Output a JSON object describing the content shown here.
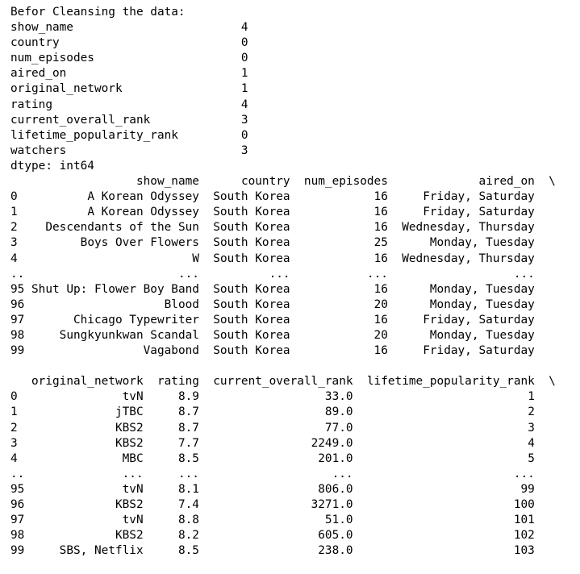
{
  "output": {
    "header": "Befor Cleansing the data:",
    "null_counts": [
      {
        "name": "show_name",
        "count": "4"
      },
      {
        "name": "country",
        "count": "0"
      },
      {
        "name": "num_episodes",
        "count": "0"
      },
      {
        "name": "aired_on",
        "count": "1"
      },
      {
        "name": "original_network",
        "count": "1"
      },
      {
        "name": "rating",
        "count": "4"
      },
      {
        "name": "current_overall_rank",
        "count": "3"
      },
      {
        "name": "lifetime_popularity_rank",
        "count": "0"
      },
      {
        "name": "watchers",
        "count": "3"
      }
    ],
    "dtype_line": "dtype: int64",
    "table1": {
      "columns": [
        "show_name",
        "country",
        "num_episodes",
        "aired_on"
      ],
      "continuation": "\\",
      "rows": [
        {
          "index": "0",
          "cells": [
            "A Korean Odyssey",
            "South Korea",
            "16",
            "Friday, Saturday"
          ]
        },
        {
          "index": "1",
          "cells": [
            "A Korean Odyssey",
            "South Korea",
            "16",
            "Friday, Saturday"
          ]
        },
        {
          "index": "2",
          "cells": [
            "Descendants of the Sun",
            "South Korea",
            "16",
            "Wednesday, Thursday"
          ]
        },
        {
          "index": "3",
          "cells": [
            "Boys Over Flowers",
            "South Korea",
            "25",
            "Monday, Tuesday"
          ]
        },
        {
          "index": "4",
          "cells": [
            "W",
            "South Korea",
            "16",
            "Wednesday, Thursday"
          ]
        },
        {
          "index": "..",
          "cells": [
            "...",
            "...",
            "...",
            "..."
          ]
        },
        {
          "index": "95",
          "cells": [
            "Shut Up: Flower Boy Band",
            "South Korea",
            "16",
            "Monday, Tuesday"
          ]
        },
        {
          "index": "96",
          "cells": [
            "Blood",
            "South Korea",
            "20",
            "Monday, Tuesday"
          ]
        },
        {
          "index": "97",
          "cells": [
            "Chicago Typewriter",
            "South Korea",
            "16",
            "Friday, Saturday"
          ]
        },
        {
          "index": "98",
          "cells": [
            "Sungkyunkwan Scandal",
            "South Korea",
            "20",
            "Monday, Tuesday"
          ]
        },
        {
          "index": "99",
          "cells": [
            "Vagabond",
            "South Korea",
            "16",
            "Friday, Saturday"
          ]
        }
      ]
    },
    "table2": {
      "columns": [
        "original_network",
        "rating",
        "current_overall_rank",
        "lifetime_popularity_rank"
      ],
      "continuation": "\\",
      "rows": [
        {
          "index": "0",
          "cells": [
            "tvN",
            "8.9",
            "33.0",
            "1"
          ]
        },
        {
          "index": "1",
          "cells": [
            "jTBC",
            "8.7",
            "89.0",
            "2"
          ]
        },
        {
          "index": "2",
          "cells": [
            "KBS2",
            "8.7",
            "77.0",
            "3"
          ]
        },
        {
          "index": "3",
          "cells": [
            "KBS2",
            "7.7",
            "2249.0",
            "4"
          ]
        },
        {
          "index": "4",
          "cells": [
            "MBC",
            "8.5",
            "201.0",
            "5"
          ]
        },
        {
          "index": "..",
          "cells": [
            "...",
            "...",
            "...",
            "..."
          ]
        },
        {
          "index": "95",
          "cells": [
            "tvN",
            "8.1",
            "806.0",
            "99"
          ]
        },
        {
          "index": "96",
          "cells": [
            "KBS2",
            "7.4",
            "3271.0",
            "100"
          ]
        },
        {
          "index": "97",
          "cells": [
            "tvN",
            "8.8",
            "51.0",
            "101"
          ]
        },
        {
          "index": "98",
          "cells": [
            "KBS2",
            "8.2",
            "605.0",
            "102"
          ]
        },
        {
          "index": "99",
          "cells": [
            "SBS, Netflix",
            "8.5",
            "238.0",
            "103"
          ]
        }
      ]
    }
  }
}
